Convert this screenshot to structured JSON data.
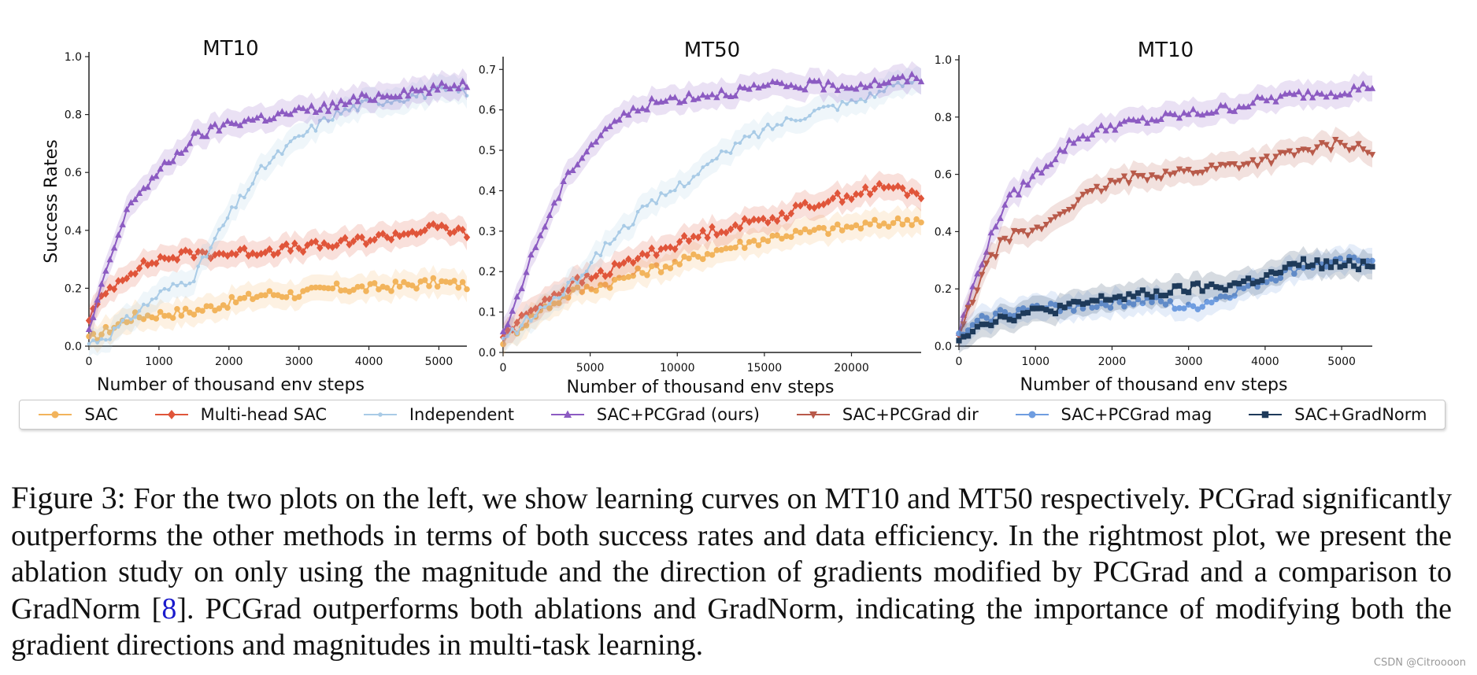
{
  "legend": [
    {
      "name": "SAC",
      "color": "#f2b45c",
      "marker": "circle"
    },
    {
      "name": "Multi-head SAC",
      "color": "#e0553a",
      "marker": "diamond"
    },
    {
      "name": "Independent",
      "color": "#a9cbe6",
      "marker": "dot"
    },
    {
      "name": "SAC+PCGrad (ours)",
      "color": "#8c5bc2",
      "marker": "triangle-up"
    },
    {
      "name": "SAC+PCGrad dir",
      "color": "#b85a4a",
      "marker": "triangle-down"
    },
    {
      "name": "SAC+PCGrad mag",
      "color": "#6f9de0",
      "marker": "circle"
    },
    {
      "name": "SAC+GradNorm",
      "color": "#1e3a5a",
      "marker": "square"
    }
  ],
  "chart_data": [
    {
      "type": "line",
      "title": "MT10",
      "xlabel": "Number of thousand env steps",
      "ylabel": "Success Rates",
      "xlim": [
        0,
        5400
      ],
      "ylim": [
        0,
        1.0
      ],
      "xticks": [
        "0",
        "1000",
        "2000",
        "3000",
        "4000",
        "5000"
      ],
      "yticks": [
        "0.0",
        "0.2",
        "0.4",
        "0.6",
        "0.8",
        "1.0"
      ],
      "series": [
        {
          "name": "SAC",
          "x": [
            0,
            300,
            600,
            1000,
            1500,
            2000,
            2500,
            3000,
            3500,
            4000,
            4500,
            5000,
            5400
          ],
          "values": [
            0.02,
            0.06,
            0.1,
            0.11,
            0.12,
            0.15,
            0.18,
            0.18,
            0.2,
            0.2,
            0.21,
            0.22,
            0.21
          ]
        },
        {
          "name": "Multi-head SAC",
          "x": [
            0,
            300,
            600,
            1000,
            1500,
            2000,
            2500,
            3000,
            3500,
            4000,
            4500,
            5000,
            5400
          ],
          "values": [
            0.1,
            0.2,
            0.26,
            0.3,
            0.32,
            0.32,
            0.33,
            0.34,
            0.35,
            0.37,
            0.39,
            0.41,
            0.39
          ]
        },
        {
          "name": "Independent",
          "x": [
            0,
            300,
            600,
            1000,
            1500,
            2000,
            2500,
            3000,
            3500,
            4000,
            4500,
            5000,
            5400
          ],
          "values": [
            0.01,
            0.04,
            0.1,
            0.18,
            0.24,
            0.45,
            0.62,
            0.72,
            0.8,
            0.84,
            0.86,
            0.88,
            0.88
          ]
        },
        {
          "name": "SAC+PCGrad (ours)",
          "x": [
            0,
            300,
            600,
            1000,
            1500,
            2000,
            2500,
            3000,
            3500,
            4000,
            4500,
            5000,
            5400
          ],
          "values": [
            0.05,
            0.3,
            0.5,
            0.6,
            0.72,
            0.77,
            0.79,
            0.81,
            0.83,
            0.86,
            0.88,
            0.89,
            0.91
          ]
        }
      ]
    },
    {
      "type": "line",
      "title": "MT50",
      "xlabel": "Number of thousand env steps",
      "ylabel": "",
      "xlim": [
        0,
        24000
      ],
      "ylim": [
        0,
        0.72
      ],
      "xticks": [
        "0",
        "5000",
        "10000",
        "15000",
        "20000"
      ],
      "yticks": [
        "0.0",
        "0.1",
        "0.2",
        "0.3",
        "0.4",
        "0.5",
        "0.6",
        "0.7"
      ],
      "series": [
        {
          "name": "SAC",
          "x": [
            0,
            2000,
            4000,
            6000,
            8000,
            10000,
            12000,
            14000,
            16000,
            18000,
            20000,
            22000,
            24000
          ],
          "values": [
            0.03,
            0.1,
            0.15,
            0.17,
            0.2,
            0.22,
            0.25,
            0.27,
            0.29,
            0.3,
            0.31,
            0.32,
            0.33
          ]
        },
        {
          "name": "Multi-head SAC",
          "x": [
            0,
            2000,
            4000,
            6000,
            8000,
            10000,
            12000,
            14000,
            16000,
            18000,
            20000,
            22000,
            24000
          ],
          "values": [
            0.04,
            0.12,
            0.17,
            0.2,
            0.24,
            0.27,
            0.3,
            0.32,
            0.34,
            0.37,
            0.39,
            0.41,
            0.39
          ]
        },
        {
          "name": "Independent",
          "x": [
            0,
            2000,
            4000,
            6000,
            8000,
            10000,
            12000,
            14000,
            16000,
            18000,
            20000,
            22000,
            24000
          ],
          "values": [
            0.03,
            0.1,
            0.17,
            0.27,
            0.35,
            0.41,
            0.47,
            0.53,
            0.57,
            0.6,
            0.62,
            0.65,
            0.68
          ]
        },
        {
          "name": "SAC+PCGrad (ours)",
          "x": [
            0,
            2000,
            4000,
            6000,
            8000,
            10000,
            12000,
            14000,
            16000,
            18000,
            20000,
            22000,
            24000
          ],
          "values": [
            0.04,
            0.28,
            0.46,
            0.56,
            0.61,
            0.63,
            0.64,
            0.65,
            0.66,
            0.66,
            0.66,
            0.67,
            0.68
          ]
        }
      ]
    },
    {
      "type": "line",
      "title": "MT10",
      "xlabel": "Number of thousand env steps",
      "ylabel": "",
      "xlim": [
        0,
        5400
      ],
      "ylim": [
        0,
        1.0
      ],
      "xticks": [
        "0",
        "1000",
        "2000",
        "3000",
        "4000",
        "5000"
      ],
      "yticks": [
        "0.0",
        "0.2",
        "0.4",
        "0.6",
        "0.8",
        "1.0"
      ],
      "series": [
        {
          "name": "SAC+PCGrad (ours)",
          "x": [
            0,
            300,
            600,
            1000,
            1500,
            2000,
            2500,
            3000,
            3500,
            4000,
            4500,
            5000,
            5400
          ],
          "values": [
            0.05,
            0.3,
            0.5,
            0.6,
            0.72,
            0.77,
            0.79,
            0.81,
            0.83,
            0.86,
            0.88,
            0.89,
            0.91
          ]
        },
        {
          "name": "SAC+PCGrad dir",
          "x": [
            0,
            300,
            600,
            1000,
            1500,
            2000,
            2500,
            3000,
            3500,
            4000,
            4500,
            5000,
            5400
          ],
          "values": [
            0.03,
            0.25,
            0.38,
            0.4,
            0.5,
            0.57,
            0.6,
            0.61,
            0.63,
            0.65,
            0.68,
            0.71,
            0.68
          ]
        },
        {
          "name": "SAC+PCGrad mag",
          "x": [
            0,
            300,
            600,
            1000,
            1500,
            2000,
            2500,
            3000,
            3500,
            4000,
            4500,
            5000,
            5400
          ],
          "values": [
            0.03,
            0.09,
            0.12,
            0.13,
            0.14,
            0.15,
            0.16,
            0.13,
            0.18,
            0.23,
            0.28,
            0.29,
            0.31
          ]
        },
        {
          "name": "SAC+GradNorm",
          "x": [
            0,
            300,
            600,
            1000,
            1500,
            2000,
            2500,
            3000,
            3500,
            4000,
            4500,
            5000,
            5400
          ],
          "values": [
            0.03,
            0.08,
            0.1,
            0.12,
            0.14,
            0.17,
            0.18,
            0.2,
            0.21,
            0.24,
            0.29,
            0.28,
            0.29
          ]
        }
      ]
    }
  ],
  "caption": {
    "label": "Figure 3:",
    "text1": " For the two plots on the left, we show learning curves on MT10 and MT50 respectively. PCGrad significantly outperforms the other methods in terms of both success rates and data efficiency. In the rightmost plot, we present the ablation study on only using the magnitude and the direction of gradients modified by PCGrad and a comparison to GradNorm [",
    "ref": "8",
    "text2": "]. PCGrad outperforms both ablations and GradNorm, indicating the importance of modifying both the gradient directions and magnitudes in multi-task learning."
  },
  "watermark": "CSDN @Citroooon"
}
